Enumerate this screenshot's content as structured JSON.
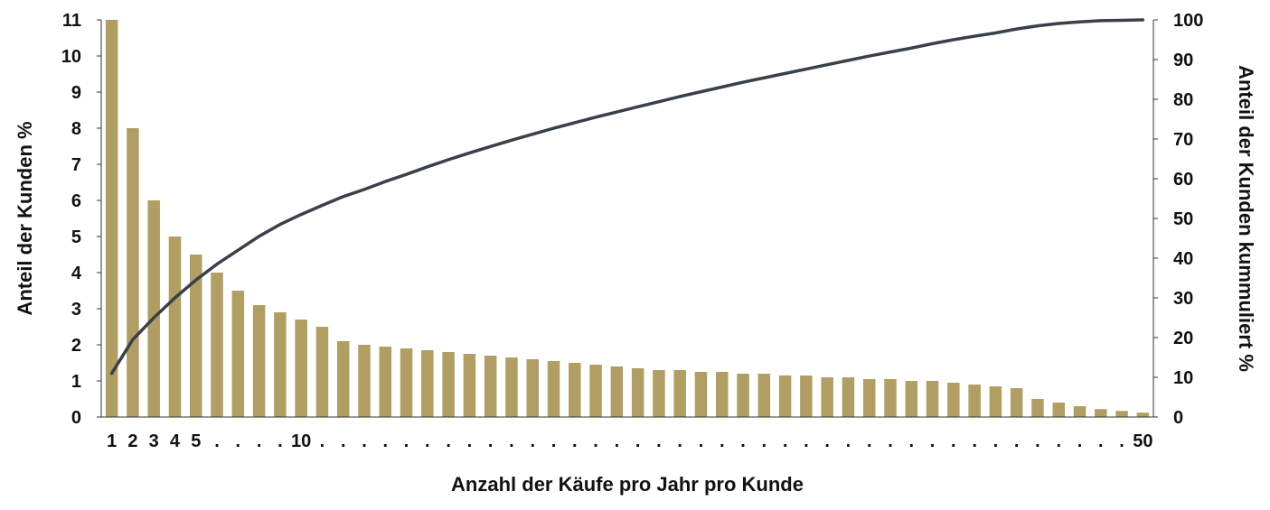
{
  "chart_data": {
    "type": "bar",
    "x": [
      1,
      2,
      3,
      4,
      5,
      6,
      7,
      8,
      9,
      10,
      11,
      12,
      13,
      14,
      15,
      16,
      17,
      18,
      19,
      20,
      21,
      22,
      23,
      24,
      25,
      26,
      27,
      28,
      29,
      30,
      31,
      32,
      33,
      34,
      35,
      36,
      37,
      38,
      39,
      40,
      41,
      42,
      43,
      44,
      45,
      46,
      47,
      48,
      49,
      50
    ],
    "x_tick_labels": [
      "1",
      "2",
      "3",
      "4",
      "5",
      ".",
      ".",
      ".",
      ".",
      "10",
      ".",
      ".",
      ".",
      ".",
      ".",
      ".",
      ".",
      ".",
      ".",
      ".",
      ".",
      ".",
      ".",
      ".",
      ".",
      ".",
      ".",
      ".",
      ".",
      ".",
      ".",
      ".",
      ".",
      ".",
      ".",
      ".",
      ".",
      ".",
      ".",
      ".",
      ".",
      ".",
      ".",
      ".",
      ".",
      ".",
      ".",
      ".",
      ".",
      "50"
    ],
    "xlabel": "Anzahl der Käufe pro Jahr pro Kunde",
    "y_left": {
      "label": "Anteil der Kunden %",
      "ylim": [
        0,
        11
      ],
      "ticks": [
        "0",
        "1",
        "2",
        "3",
        "4",
        "5",
        "6",
        "7",
        "8",
        "9",
        "10",
        "11"
      ]
    },
    "y_right": {
      "label": "Anteil der Kunden kummuliert %",
      "ylim": [
        0,
        100
      ],
      "ticks": [
        "0",
        "10",
        "20",
        "30",
        "40",
        "50",
        "60",
        "70",
        "80",
        "90",
        "100"
      ]
    },
    "series": [
      {
        "type": "bar",
        "axis": "left",
        "color": "#b19e62",
        "values": [
          11,
          8,
          6,
          5,
          4.5,
          4,
          3.5,
          3.1,
          2.9,
          2.7,
          2.5,
          2.1,
          2,
          1.95,
          1.9,
          1.85,
          1.8,
          1.75,
          1.7,
          1.65,
          1.6,
          1.55,
          1.5,
          1.45,
          1.4,
          1.35,
          1.3,
          1.3,
          1.25,
          1.25,
          1.2,
          1.2,
          1.15,
          1.15,
          1.1,
          1.1,
          1.05,
          1.05,
          1.0,
          1.0,
          0.95,
          0.9,
          0.85,
          0.8,
          0.5,
          0.4,
          0.3,
          0.22,
          0.17,
          0.12
        ]
      },
      {
        "type": "line",
        "axis": "right",
        "color": "#3a404a",
        "values": [
          11,
          19.5,
          25,
          30,
          34.5,
          38.5,
          42,
          45.5,
          48.5,
          51,
          53.3,
          55.5,
          57.3,
          59.3,
          61.1,
          63,
          64.8,
          66.5,
          68.1,
          69.7,
          71.2,
          72.7,
          74.1,
          75.5,
          76.8,
          78.1,
          79.4,
          80.7,
          81.9,
          83.1,
          84.3,
          85.4,
          86.5,
          87.6,
          88.7,
          89.8,
          90.9,
          91.9,
          92.9,
          94,
          95,
          95.9,
          96.7,
          97.7,
          98.5,
          99.1,
          99.5,
          99.8,
          99.9,
          100
        ]
      }
    ],
    "grid": false,
    "legend": "none"
  }
}
